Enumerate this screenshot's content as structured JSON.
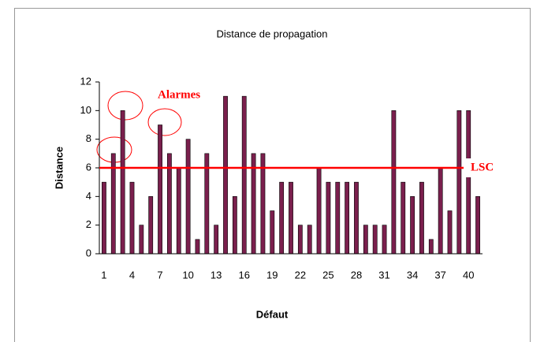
{
  "chart_data": {
    "type": "bar",
    "title": "Distance de propagation",
    "x_label": "Défaut",
    "y_label": "Distance",
    "categories": [
      1,
      null,
      null,
      4,
      null,
      null,
      7,
      null,
      null,
      10,
      null,
      null,
      13,
      null,
      null,
      16,
      null,
      null,
      19,
      null,
      null,
      22,
      null,
      null,
      25,
      null,
      null,
      28,
      null,
      null,
      31,
      null,
      null,
      34,
      null,
      null,
      37,
      null,
      null,
      40,
      null
    ],
    "values": [
      5,
      7,
      10,
      5,
      2,
      4,
      9,
      7,
      6,
      8,
      1,
      7,
      2,
      11,
      4,
      11,
      7,
      7,
      3,
      5,
      5,
      2,
      2,
      6,
      5,
      5,
      5,
      5,
      2,
      2,
      2,
      10,
      5,
      4,
      5,
      1,
      6,
      3,
      10,
      10,
      4
    ],
    "color": "#7a1f4d",
    "ylim": [
      0,
      12
    ],
    "yticks": [
      0,
      2,
      4,
      6,
      8,
      10,
      12
    ],
    "threshold": {
      "value": 6,
      "label": "LSC",
      "color": "#ff0000"
    },
    "annotations": [
      "Alarmes"
    ]
  }
}
